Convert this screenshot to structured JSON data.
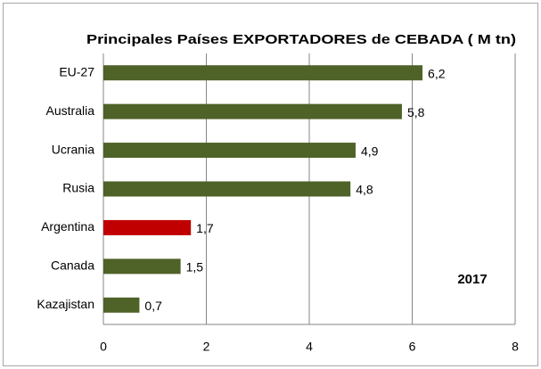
{
  "chart_data": {
    "type": "barh",
    "title": "Principales Países EXPORTADORES de CEBADA ( M tn)",
    "categories": [
      "EU-27",
      "Australia",
      "Ucrania",
      "Rusia",
      "Argentina",
      "Canada",
      "Kazajistan"
    ],
    "values": [
      6.2,
      5.8,
      4.9,
      4.8,
      1.7,
      1.5,
      0.7
    ],
    "value_labels": [
      "6,2",
      "5,8",
      "4,9",
      "4,8",
      "1,7",
      "1,5",
      "0,7"
    ],
    "colors": [
      "#4f6228",
      "#4f6228",
      "#4f6228",
      "#4f6228",
      "#c00000",
      "#4f6228",
      "#4f6228"
    ],
    "xlim": [
      0,
      8
    ],
    "xticks": [
      0,
      2,
      4,
      6,
      8
    ],
    "grid": true,
    "annotation": "2017"
  }
}
